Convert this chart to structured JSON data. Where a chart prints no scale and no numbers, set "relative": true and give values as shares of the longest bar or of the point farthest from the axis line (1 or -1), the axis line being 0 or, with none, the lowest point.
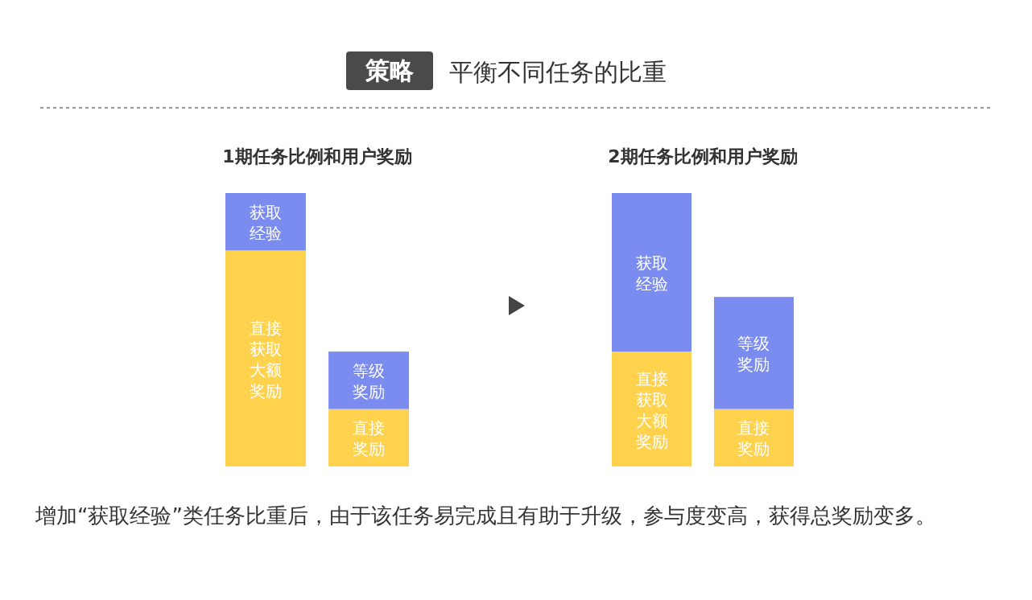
{
  "chart_data": [
    {
      "type": "other",
      "title": "平衡不同任务的比重",
      "annotations": [
        "策略",
        "增加“获取经验”类任务比重后，由于该任务易完成且有助于升级，参与度变高，获得总奖励变多。"
      ]
    },
    {
      "type": "bar",
      "title": "1期任务比例和用户奖励",
      "categories": [
        null,
        null
      ],
      "stacked": true,
      "relative": true,
      "series": [
        {
          "name": "直接获取大额奖励",
          "color": "#ffd24d",
          "values": [
            0.79,
            null
          ]
        },
        {
          "name": "获取经验",
          "color": "#7b8cf0",
          "values": [
            0.21,
            null
          ]
        },
        {
          "name": "直接奖励",
          "color": "#ffd24d",
          "values": [
            null,
            0.21
          ]
        },
        {
          "name": "等级奖励",
          "color": "#7b8cf0",
          "values": [
            null,
            0.21
          ]
        }
      ]
    },
    {
      "type": "bar",
      "title": "2期任务比例和用户奖励",
      "categories": [
        null,
        null
      ],
      "stacked": true,
      "relative": true,
      "series": [
        {
          "name": "直接获取大额奖励",
          "color": "#ffd24d",
          "values": [
            0.42,
            null
          ]
        },
        {
          "name": "获取经验",
          "color": "#7b8cf0",
          "values": [
            0.58,
            null
          ]
        },
        {
          "name": "直接奖励",
          "color": "#ffd24d",
          "values": [
            null,
            0.21
          ]
        },
        {
          "name": "等级奖励",
          "color": "#7b8cf0",
          "values": [
            null,
            0.41
          ]
        }
      ]
    }
  ]
}
